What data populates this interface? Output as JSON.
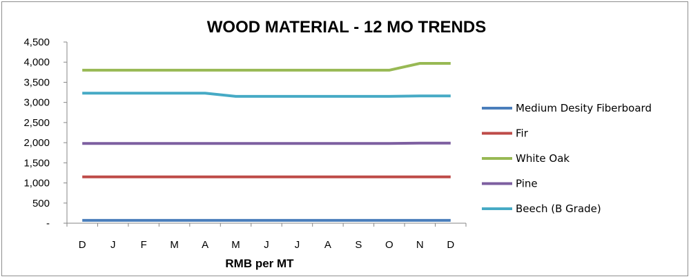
{
  "chart_data": {
    "type": "line",
    "title": "WOOD MATERIAL - 12 MO TRENDS",
    "xlabel": "RMB per MT",
    "ylabel": "",
    "categories": [
      "D",
      "J",
      "F",
      "M",
      "A",
      "M",
      "J",
      "J",
      "A",
      "S",
      "O",
      "N",
      "D"
    ],
    "ylim": [
      0,
      4500
    ],
    "yticks": [
      0,
      500,
      1000,
      1500,
      2000,
      2500,
      3000,
      3500,
      4000,
      4500
    ],
    "ytick_labels": [
      "-",
      "500",
      "1,000",
      "1,500",
      "2,000",
      "2,500",
      "3,000",
      "3,500",
      "4,000",
      "4,500"
    ],
    "grid": false,
    "legend_position": "right",
    "series": [
      {
        "name": "Medium Desity Fiberboard",
        "color": "#4a7ebb",
        "values": [
          70,
          70,
          70,
          70,
          70,
          70,
          70,
          70,
          70,
          70,
          70,
          70,
          70
        ]
      },
      {
        "name": "Fir",
        "color": "#be4b48",
        "values": [
          1150,
          1150,
          1150,
          1150,
          1150,
          1150,
          1150,
          1150,
          1150,
          1150,
          1150,
          1150,
          1150
        ]
      },
      {
        "name": "White Oak",
        "color": "#98b954",
        "values": [
          3800,
          3800,
          3800,
          3800,
          3800,
          3800,
          3800,
          3800,
          3800,
          3800,
          3800,
          3970,
          3970
        ]
      },
      {
        "name": "Pine",
        "color": "#7d5fa0",
        "values": [
          1980,
          1980,
          1980,
          1980,
          1980,
          1980,
          1980,
          1980,
          1980,
          1980,
          1980,
          1990,
          1990
        ]
      },
      {
        "name": "Beech (B Grade)",
        "color": "#46aac5",
        "values": [
          3230,
          3230,
          3230,
          3230,
          3230,
          3150,
          3150,
          3150,
          3150,
          3150,
          3150,
          3160,
          3160
        ]
      }
    ]
  }
}
